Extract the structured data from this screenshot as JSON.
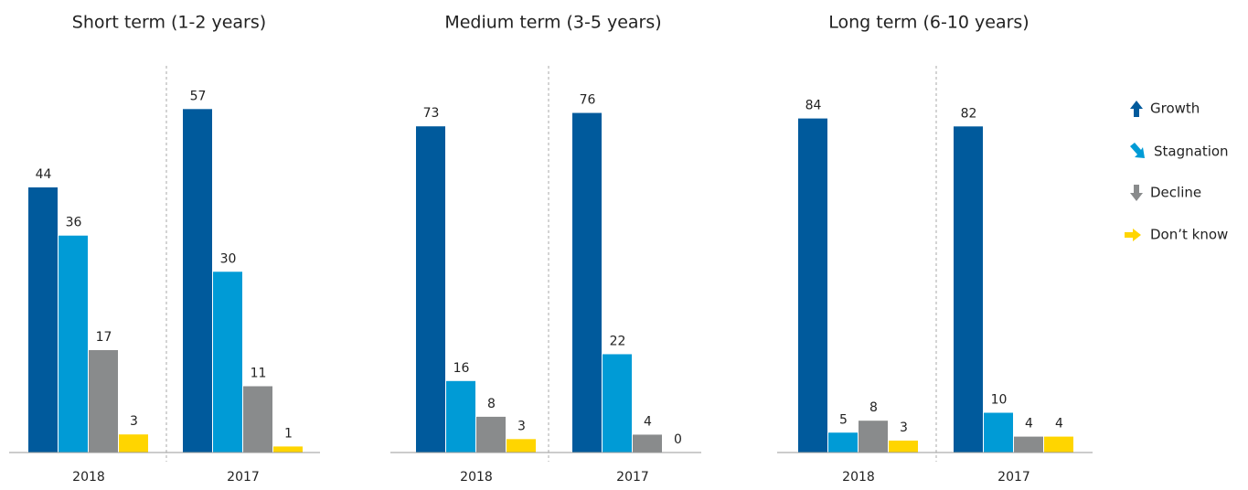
{
  "chart_data": [
    {
      "type": "bar",
      "title": "Short term (1-2 years)",
      "categories": [
        "2018",
        "2017"
      ],
      "ylim": [
        0,
        66
      ],
      "series": [
        {
          "values": [
            44,
            57
          ]
        },
        {
          "values": [
            36,
            30
          ]
        },
        {
          "values": [
            17,
            11
          ]
        },
        {
          "values": [
            3,
            1
          ]
        }
      ]
    },
    {
      "type": "bar",
      "title": "Medium term (3-5 years)",
      "categories": [
        "2018",
        "2017"
      ],
      "ylim": [
        0,
        89
      ],
      "series": [
        {
          "values": [
            73,
            76
          ]
        },
        {
          "values": [
            16,
            22
          ]
        },
        {
          "values": [
            8,
            4
          ]
        },
        {
          "values": [
            3,
            0
          ]
        }
      ]
    },
    {
      "type": "bar",
      "title": "Long term (6-10 years)",
      "categories": [
        "2018",
        "2017"
      ],
      "ylim": [
        0,
        100
      ],
      "series": [
        {
          "values": [
            84,
            82
          ]
        },
        {
          "values": [
            5,
            10
          ]
        },
        {
          "values": [
            8,
            4
          ]
        },
        {
          "values": [
            3,
            4
          ]
        }
      ]
    }
  ],
  "legend": [
    {
      "name": "Growth",
      "color": "#005a9c"
    },
    {
      "name": "Stagnation",
      "color": "#009bd6"
    },
    {
      "name": "Decline",
      "color": "#898b8c"
    },
    {
      "name": "Don’t know",
      "color": "#ffd500"
    }
  ]
}
